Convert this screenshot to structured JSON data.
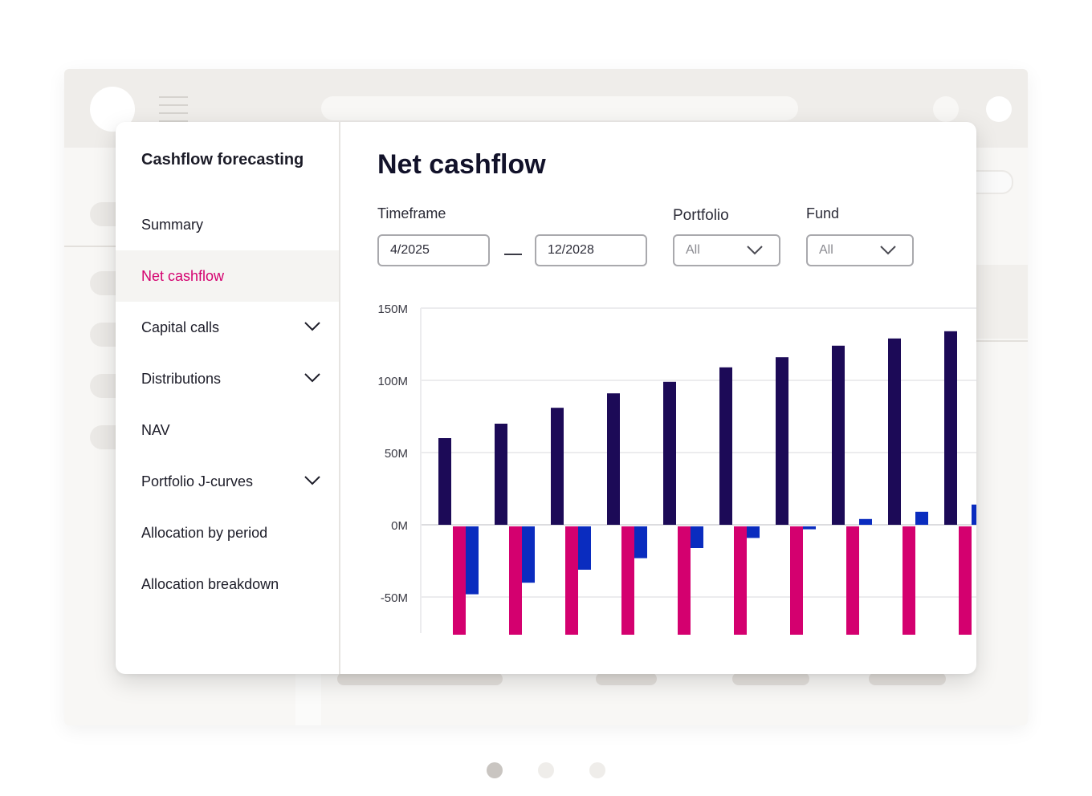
{
  "sidebar": {
    "title": "Cashflow forecasting",
    "items": [
      {
        "label": "Summary",
        "chevron": false,
        "active": false
      },
      {
        "label": "Net cashflow",
        "chevron": false,
        "active": true
      },
      {
        "label": "Capital calls",
        "chevron": true,
        "active": false
      },
      {
        "label": "Distributions",
        "chevron": true,
        "active": false
      },
      {
        "label": "NAV",
        "chevron": false,
        "active": false
      },
      {
        "label": "Portfolio J-curves",
        "chevron": true,
        "active": false
      },
      {
        "label": "Allocation by period",
        "chevron": false,
        "active": false
      },
      {
        "label": "Allocation breakdown",
        "chevron": false,
        "active": false
      }
    ]
  },
  "main": {
    "title": "Net cashflow",
    "filters": {
      "timeframe_label": "Timeframe",
      "timeframe_start": "4/2025",
      "timeframe_end": "12/2028",
      "portfolio_label": "Portfolio",
      "portfolio_value": "All",
      "fund_label": "Fund",
      "fund_value": "All"
    }
  },
  "colors": {
    "accent": "#d4006f",
    "series_dark": "#1c0a57",
    "series_magenta": "#d4006f",
    "series_blue": "#0a2cbf"
  },
  "chart_data": {
    "type": "bar",
    "title": "",
    "xlabel": "",
    "ylabel": "",
    "ylim": [
      -75,
      150
    ],
    "yticks": [
      150,
      100,
      50,
      0,
      -50
    ],
    "ytick_labels": [
      "150M",
      "100M",
      "50M",
      "0M",
      "-50M"
    ],
    "grid": true,
    "legend": "none",
    "x": [
      1,
      2,
      3,
      4,
      5,
      6,
      7,
      8,
      9,
      10
    ],
    "series": [
      {
        "values": [
          60,
          70,
          81,
          91,
          99,
          109,
          116,
          124,
          129,
          134
        ]
      },
      {
        "values": [
          -75,
          -75,
          -75,
          -75,
          -75,
          -75,
          -75,
          -75,
          -75,
          -75
        ]
      },
      {
        "values": [
          -47,
          -39,
          -30,
          -22,
          -15,
          -8,
          -2,
          4,
          9,
          14
        ]
      }
    ]
  },
  "carousel": {
    "dots": [
      {
        "active": true
      },
      {
        "active": false
      },
      {
        "active": false
      }
    ]
  }
}
